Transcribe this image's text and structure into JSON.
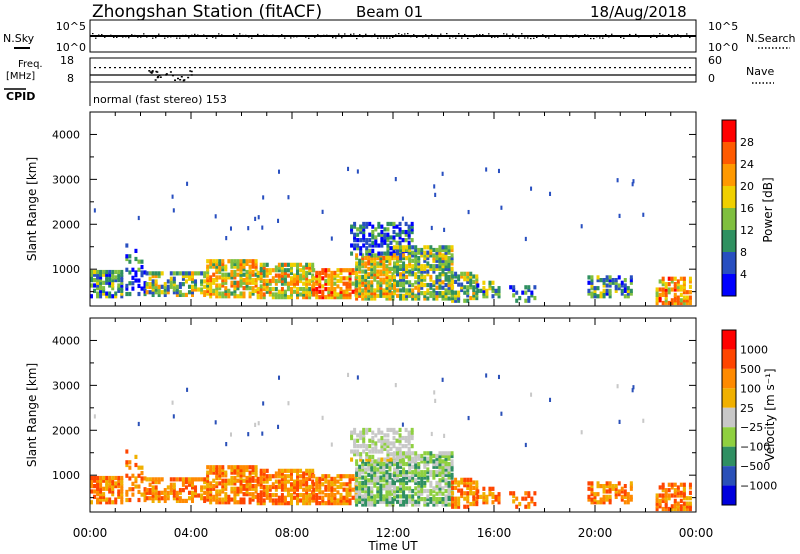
{
  "header": {
    "title": "Zhongshan Station (fitACF)",
    "beam": "Beam 01",
    "date": "18/Aug/2018",
    "mode": "normal (fast stereo) 153"
  },
  "panels": {
    "nsky_label": "N.Sky",
    "nsearch_label": "N.Search",
    "nsky_ticks": [
      "10^5",
      "10^0"
    ],
    "nsearch_ticks": [
      "10^5",
      "10^0"
    ],
    "freq_label_1": "Freq.",
    "freq_label_2": "[MHz]",
    "freq_ticks": [
      "18",
      "8"
    ],
    "nave_label": "Nave",
    "nave_ticks": [
      "60",
      "0"
    ],
    "cpid_label": "CPID"
  },
  "colors": {
    "power_scale": [
      "#0000ff",
      "#284fc0",
      "#2f9060",
      "#7fbf3f",
      "#f0d000",
      "#ff9900",
      "#ff5a00",
      "#ff0000"
    ],
    "velocity_scale": [
      "#0000dd",
      "#2a50b8",
      "#2f8f62",
      "#8fd040",
      "#c8c8c8",
      "#f0b000",
      "#ff8a00",
      "#ff4500",
      "#ff0000"
    ],
    "grid": "#000000"
  },
  "chart_data": [
    {
      "type": "heatmap",
      "name": "power",
      "xlabel": "",
      "ylabel": "Slant Range [km]",
      "x_ticks": [
        "00:00",
        "04:00",
        "08:00",
        "12:00",
        "16:00",
        "20:00",
        "00:00"
      ],
      "y_ticks": [
        "4000",
        "3000",
        "2000",
        "1000"
      ],
      "xlim_hours": [
        0,
        24
      ],
      "ylim_km": [
        180,
        4500
      ],
      "colorbar_label": "Power [dB]",
      "colorbar_ticks": [
        "28",
        "24",
        "20",
        "16",
        "12",
        "8",
        "4"
      ],
      "colorbar_range": [
        0,
        32
      ]
    },
    {
      "type": "heatmap",
      "name": "velocity",
      "xlabel": "Time UT",
      "ylabel": "Slant Range [km]",
      "x_ticks": [
        "00:00",
        "04:00",
        "08:00",
        "12:00",
        "16:00",
        "20:00",
        "00:00"
      ],
      "y_ticks": [
        "4000",
        "3000",
        "2000",
        "1000"
      ],
      "xlim_hours": [
        0,
        24
      ],
      "ylim_km": [
        180,
        4500
      ],
      "colorbar_label": "Velocity [m s⁻¹]",
      "colorbar_ticks": [
        "1000",
        "500",
        "100",
        "25",
        "−25",
        "−100",
        "−500",
        "−1000"
      ]
    }
  ]
}
